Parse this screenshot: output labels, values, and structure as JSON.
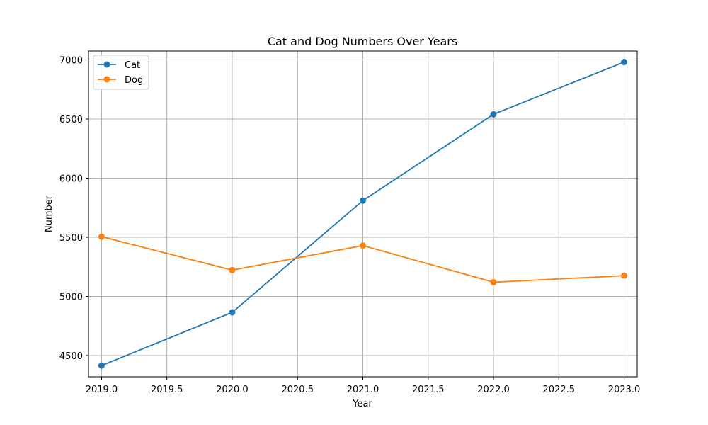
{
  "chart_data": {
    "type": "line",
    "title": "Cat and Dog Numbers Over Years",
    "xlabel": "Year",
    "ylabel": "Number",
    "x": [
      2019,
      2020,
      2021,
      2022,
      2023
    ],
    "series": [
      {
        "name": "Cat",
        "color": "#1f77b4",
        "marker": "circle",
        "values": [
          4415,
          4865,
          5810,
          6540,
          6982
        ]
      },
      {
        "name": "Dog",
        "color": "#ff7f0e",
        "marker": "circle",
        "values": [
          5505,
          5222,
          5430,
          5120,
          5175
        ]
      }
    ],
    "xlim": [
      2018.9,
      2023.1
    ],
    "ylim": [
      4320,
      7075
    ],
    "xticks": [
      2019.0,
      2019.5,
      2020.0,
      2020.5,
      2021.0,
      2021.5,
      2022.0,
      2022.5,
      2023.0
    ],
    "xtick_labels": [
      "2019.0",
      "2019.5",
      "2020.0",
      "2020.5",
      "2021.0",
      "2021.5",
      "2022.0",
      "2022.5",
      "2023.0"
    ],
    "yticks": [
      4500,
      5000,
      5500,
      6000,
      6500,
      7000
    ],
    "ytick_labels": [
      "4500",
      "5000",
      "5500",
      "6000",
      "6500",
      "7000"
    ],
    "grid": true,
    "legend_position": "upper-left"
  }
}
